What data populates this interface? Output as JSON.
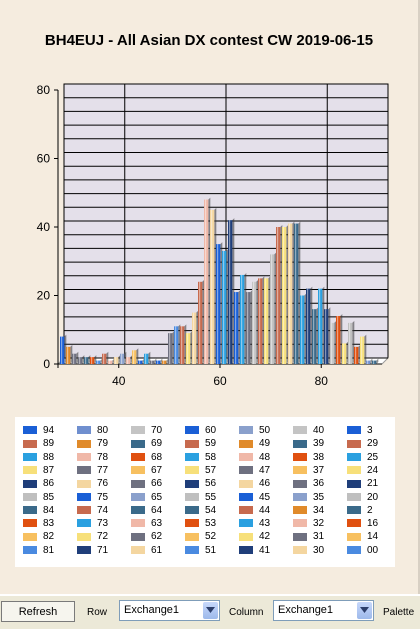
{
  "chart_data": {
    "type": "bar",
    "title": "BH4EUJ - All Asian DX contest CW 2019-06-15",
    "y_ticks": [
      0,
      20,
      40,
      60,
      80
    ],
    "x_ticks": [
      40,
      60,
      80
    ],
    "ylim": [
      0,
      80
    ],
    "grid": true,
    "series": [
      {
        "name": "00",
        "values": [
          8,
          5,
          3,
          2,
          2,
          2,
          1,
          3,
          1,
          2,
          3,
          2,
          4,
          1,
          3,
          1,
          1,
          1,
          9,
          11,
          11,
          9,
          15,
          24,
          48,
          45,
          35,
          33,
          42,
          21,
          26,
          21,
          24,
          25,
          25,
          32,
          40,
          40,
          41,
          41,
          20,
          22,
          16,
          22,
          16,
          12,
          14,
          6,
          12,
          5,
          8,
          1,
          1
        ]
      }
    ]
  },
  "legend": [
    "94",
    "80",
    "70",
    "60",
    "50",
    "40",
    "3",
    "89",
    "79",
    "69",
    "59",
    "49",
    "39",
    "29",
    "88",
    "78",
    "68",
    "58",
    "48",
    "38",
    "25",
    "87",
    "77",
    "67",
    "57",
    "47",
    "37",
    "24",
    "86",
    "76",
    "66",
    "56",
    "46",
    "36",
    "21",
    "85",
    "75",
    "65",
    "55",
    "45",
    "35",
    "20",
    "84",
    "74",
    "64",
    "54",
    "44",
    "34",
    "2",
    "83",
    "73",
    "63",
    "53",
    "43",
    "32",
    "16",
    "82",
    "72",
    "62",
    "52",
    "42",
    "31",
    "14",
    "81",
    "71",
    "61",
    "51",
    "41",
    "30",
    "00"
  ],
  "palette": [
    "#1a5fd6",
    "#6f8fcf",
    "#c4c4c4",
    "#1a5fd6",
    "#8aa0cc",
    "#c4c4c4",
    "#1a5fd6",
    "#c76a4e",
    "#e08a2a",
    "#3a6a8a",
    "#c76a4e",
    "#e08a2a",
    "#3a6a8a",
    "#c76a4e",
    "#2aa0e0",
    "#f0b8a8",
    "#e05010",
    "#2aa0e0",
    "#f0b8a8",
    "#e05010",
    "#2aa0e0",
    "#f7e07a",
    "#6e7080",
    "#f7c060",
    "#f7e07a",
    "#6e7080",
    "#f7c060",
    "#f7e07a",
    "#1f3e7a",
    "#f4d6a0",
    "#6e7080",
    "#1f3e7a",
    "#f4d6a0",
    "#6e7080",
    "#1f3e7a",
    "#bfbfbf",
    "#1a5fd6",
    "#8aa0cc",
    "#bfbfbf",
    "#1a5fd6",
    "#8aa0cc",
    "#bfbfbf",
    "#3a6a8a",
    "#c76a4e",
    "#3a6a8a",
    "#3a6a8a",
    "#c76a4e",
    "#e08a2a",
    "#3a6a8a",
    "#e05010",
    "#2aa0e0",
    "#f0b8a8",
    "#e05010",
    "#2aa0e0",
    "#f0b8a8",
    "#e05010",
    "#f7c060",
    "#f7e07a",
    "#6e7080",
    "#f7c060",
    "#f7e07a",
    "#6e7080",
    "#f7c060",
    "#4a8ae0",
    "#1f3e7a",
    "#f4d6a0",
    "#4a8ae0",
    "#1f3e7a",
    "#f4d6a0",
    "#4a8ae0"
  ],
  "toolbar": {
    "refresh_label": "Refresh",
    "row_label": "Row",
    "row_value": "Exchange1",
    "column_label": "Column",
    "column_value": "Exchange1",
    "palette_label": "Palette"
  }
}
